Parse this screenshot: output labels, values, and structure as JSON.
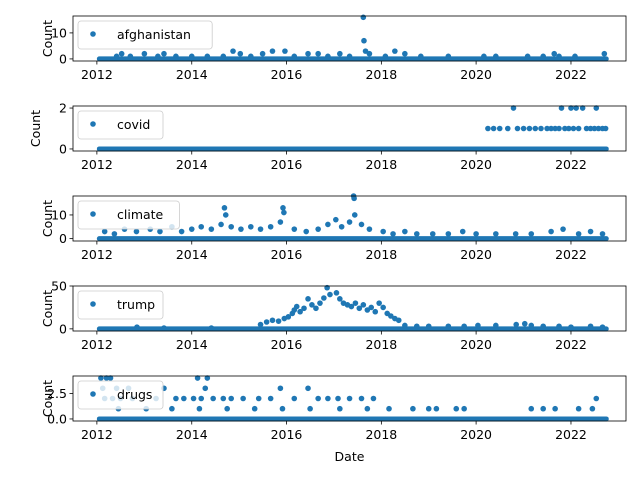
{
  "chart_data": [
    {
      "type": "scatter",
      "legend": "afghanistan",
      "legend_position": "upper-left",
      "ylabel": "Count",
      "xlim": [
        "2011-07-01",
        "2023-03-01"
      ],
      "ylim": [
        -0.8,
        16.5
      ],
      "yticks": [
        0,
        10
      ],
      "ytick_labels": [
        "0",
        "10"
      ],
      "color": "#1f77b4",
      "baseline_value": 0,
      "baseline_range": [
        "2012-01-20",
        "2022-09-30"
      ],
      "points": [
        {
          "x": "2012-06-01",
          "y": 1
        },
        {
          "x": "2012-07-10",
          "y": 2
        },
        {
          "x": "2012-09-15",
          "y": 1
        },
        {
          "x": "2013-01-01",
          "y": 2
        },
        {
          "x": "2013-04-15",
          "y": 1
        },
        {
          "x": "2013-06-01",
          "y": 2
        },
        {
          "x": "2013-09-01",
          "y": 1
        },
        {
          "x": "2014-01-01",
          "y": 1
        },
        {
          "x": "2014-05-01",
          "y": 1
        },
        {
          "x": "2014-09-01",
          "y": 1
        },
        {
          "x": "2014-11-15",
          "y": 3
        },
        {
          "x": "2015-01-10",
          "y": 2
        },
        {
          "x": "2015-04-01",
          "y": 1
        },
        {
          "x": "2015-07-01",
          "y": 2
        },
        {
          "x": "2015-09-15",
          "y": 3
        },
        {
          "x": "2015-12-20",
          "y": 3
        },
        {
          "x": "2016-03-01",
          "y": 1
        },
        {
          "x": "2016-06-15",
          "y": 2
        },
        {
          "x": "2016-09-01",
          "y": 2
        },
        {
          "x": "2016-11-15",
          "y": 1
        },
        {
          "x": "2017-02-15",
          "y": 2
        },
        {
          "x": "2017-05-01",
          "y": 1
        },
        {
          "x": "2017-08-15",
          "y": 16
        },
        {
          "x": "2017-08-20",
          "y": 7
        },
        {
          "x": "2017-09-01",
          "y": 3
        },
        {
          "x": "2017-10-01",
          "y": 2
        },
        {
          "x": "2018-02-01",
          "y": 1
        },
        {
          "x": "2018-04-15",
          "y": 3
        },
        {
          "x": "2018-07-01",
          "y": 2
        },
        {
          "x": "2018-11-01",
          "y": 1
        },
        {
          "x": "2019-06-01",
          "y": 1
        },
        {
          "x": "2020-03-01",
          "y": 1
        },
        {
          "x": "2020-06-01",
          "y": 1
        },
        {
          "x": "2021-02-01",
          "y": 1
        },
        {
          "x": "2021-06-01",
          "y": 1
        },
        {
          "x": "2021-08-25",
          "y": 2
        },
        {
          "x": "2021-10-01",
          "y": 1
        },
        {
          "x": "2022-02-01",
          "y": 1
        },
        {
          "x": "2022-09-15",
          "y": 2
        }
      ]
    },
    {
      "type": "scatter",
      "legend": "covid",
      "legend_position": "upper-left",
      "ylabel": "Count",
      "xlim": [
        "2011-07-01",
        "2023-03-01"
      ],
      "ylim": [
        -0.1,
        2.1
      ],
      "yticks": [
        0,
        2
      ],
      "ytick_labels": [
        "0",
        "2"
      ],
      "color": "#1f77b4",
      "baseline_value": 0,
      "baseline_range": [
        "2012-01-20",
        "2022-09-30"
      ],
      "points": [
        {
          "x": "2020-04-01",
          "y": 1
        },
        {
          "x": "2020-05-15",
          "y": 1
        },
        {
          "x": "2020-07-01",
          "y": 1
        },
        {
          "x": "2020-09-01",
          "y": 1
        },
        {
          "x": "2020-10-15",
          "y": 2
        },
        {
          "x": "2020-11-15",
          "y": 1
        },
        {
          "x": "2021-01-01",
          "y": 1
        },
        {
          "x": "2021-02-15",
          "y": 1
        },
        {
          "x": "2021-04-01",
          "y": 1
        },
        {
          "x": "2021-05-15",
          "y": 1
        },
        {
          "x": "2021-07-01",
          "y": 1
        },
        {
          "x": "2021-08-01",
          "y": 1
        },
        {
          "x": "2021-09-01",
          "y": 1
        },
        {
          "x": "2021-10-01",
          "y": 1
        },
        {
          "x": "2021-10-20",
          "y": 2
        },
        {
          "x": "2021-11-15",
          "y": 1
        },
        {
          "x": "2021-12-15",
          "y": 1
        },
        {
          "x": "2022-01-01",
          "y": 2
        },
        {
          "x": "2022-01-20",
          "y": 1
        },
        {
          "x": "2022-02-10",
          "y": 2
        },
        {
          "x": "2022-03-01",
          "y": 1
        },
        {
          "x": "2022-04-01",
          "y": 2
        },
        {
          "x": "2022-05-01",
          "y": 1
        },
        {
          "x": "2022-06-01",
          "y": 1
        },
        {
          "x": "2022-07-01",
          "y": 1
        },
        {
          "x": "2022-07-15",
          "y": 2
        },
        {
          "x": "2022-08-01",
          "y": 1
        },
        {
          "x": "2022-09-01",
          "y": 1
        },
        {
          "x": "2022-09-25",
          "y": 1
        }
      ]
    },
    {
      "type": "scatter",
      "legend": "climate",
      "legend_position": "upper-left",
      "ylabel": "Count",
      "xlim": [
        "2011-07-01",
        "2023-03-01"
      ],
      "ylim": [
        -1.0,
        18.0
      ],
      "yticks": [
        0,
        10
      ],
      "ytick_labels": [
        "0",
        "10"
      ],
      "color": "#1f77b4",
      "baseline_value": 0,
      "baseline_range": [
        "2012-01-20",
        "2022-09-30"
      ],
      "points": [
        {
          "x": "2012-03-01",
          "y": 3
        },
        {
          "x": "2012-05-15",
          "y": 2
        },
        {
          "x": "2012-08-01",
          "y": 4
        },
        {
          "x": "2012-11-01",
          "y": 3
        },
        {
          "x": "2013-02-15",
          "y": 4
        },
        {
          "x": "2013-05-01",
          "y": 3
        },
        {
          "x": "2013-08-01",
          "y": 5
        },
        {
          "x": "2013-10-15",
          "y": 3
        },
        {
          "x": "2014-01-01",
          "y": 4
        },
        {
          "x": "2014-03-15",
          "y": 5
        },
        {
          "x": "2014-06-01",
          "y": 4
        },
        {
          "x": "2014-08-15",
          "y": 6
        },
        {
          "x": "2014-09-10",
          "y": 13
        },
        {
          "x": "2014-09-20",
          "y": 10
        },
        {
          "x": "2014-11-01",
          "y": 5
        },
        {
          "x": "2015-01-15",
          "y": 4
        },
        {
          "x": "2015-04-01",
          "y": 5
        },
        {
          "x": "2015-06-15",
          "y": 4
        },
        {
          "x": "2015-09-01",
          "y": 5
        },
        {
          "x": "2015-11-15",
          "y": 7
        },
        {
          "x": "2015-12-05",
          "y": 13
        },
        {
          "x": "2015-12-12",
          "y": 11
        },
        {
          "x": "2016-03-01",
          "y": 4
        },
        {
          "x": "2016-06-01",
          "y": 3
        },
        {
          "x": "2016-09-01",
          "y": 4
        },
        {
          "x": "2016-11-15",
          "y": 6
        },
        {
          "x": "2017-01-15",
          "y": 8
        },
        {
          "x": "2017-03-01",
          "y": 5
        },
        {
          "x": "2017-05-01",
          "y": 7
        },
        {
          "x": "2017-06-01",
          "y": 18
        },
        {
          "x": "2017-06-05",
          "y": 17
        },
        {
          "x": "2017-06-10",
          "y": 10
        },
        {
          "x": "2017-08-01",
          "y": 6
        },
        {
          "x": "2017-10-01",
          "y": 4
        },
        {
          "x": "2018-01-15",
          "y": 3
        },
        {
          "x": "2018-04-01",
          "y": 2
        },
        {
          "x": "2018-07-01",
          "y": 3
        },
        {
          "x": "2018-10-01",
          "y": 2
        },
        {
          "x": "2019-02-01",
          "y": 2
        },
        {
          "x": "2019-06-01",
          "y": 2
        },
        {
          "x": "2019-09-20",
          "y": 3
        },
        {
          "x": "2020-01-01",
          "y": 2
        },
        {
          "x": "2020-06-01",
          "y": 2
        },
        {
          "x": "2020-11-01",
          "y": 2
        },
        {
          "x": "2021-03-01",
          "y": 2
        },
        {
          "x": "2021-08-01",
          "y": 3
        },
        {
          "x": "2021-11-01",
          "y": 4
        },
        {
          "x": "2022-03-01",
          "y": 2
        },
        {
          "x": "2022-06-01",
          "y": 3
        },
        {
          "x": "2022-09-01",
          "y": 2
        }
      ]
    },
    {
      "type": "scatter",
      "legend": "trump",
      "legend_position": "upper-left",
      "ylabel": "Count",
      "xlim": [
        "2011-07-01",
        "2023-03-01"
      ],
      "ylim": [
        -2.5,
        50.0
      ],
      "yticks": [
        0,
        50
      ],
      "ytick_labels": [
        "0",
        "50"
      ],
      "color": "#1f77b4",
      "baseline_value": 0,
      "baseline_range": [
        "2012-01-20",
        "2022-09-30"
      ],
      "points": [
        {
          "x": "2012-11-05",
          "y": 2
        },
        {
          "x": "2013-06-01",
          "y": 1
        },
        {
          "x": "2014-06-01",
          "y": 1
        },
        {
          "x": "2015-06-15",
          "y": 5
        },
        {
          "x": "2015-08-01",
          "y": 8
        },
        {
          "x": "2015-09-15",
          "y": 10
        },
        {
          "x": "2015-11-01",
          "y": 9
        },
        {
          "x": "2015-12-15",
          "y": 12
        },
        {
          "x": "2016-01-15",
          "y": 14
        },
        {
          "x": "2016-02-15",
          "y": 18
        },
        {
          "x": "2016-03-01",
          "y": 22
        },
        {
          "x": "2016-03-20",
          "y": 26
        },
        {
          "x": "2016-04-15",
          "y": 20
        },
        {
          "x": "2016-05-15",
          "y": 24
        },
        {
          "x": "2016-06-15",
          "y": 35
        },
        {
          "x": "2016-07-15",
          "y": 28
        },
        {
          "x": "2016-08-15",
          "y": 24
        },
        {
          "x": "2016-09-15",
          "y": 30
        },
        {
          "x": "2016-10-15",
          "y": 36
        },
        {
          "x": "2016-11-09",
          "y": 48
        },
        {
          "x": "2016-12-01",
          "y": 40
        },
        {
          "x": "2017-01-20",
          "y": 42
        },
        {
          "x": "2017-02-15",
          "y": 35
        },
        {
          "x": "2017-03-15",
          "y": 30
        },
        {
          "x": "2017-04-15",
          "y": 28
        },
        {
          "x": "2017-05-15",
          "y": 26
        },
        {
          "x": "2017-06-15",
          "y": 30
        },
        {
          "x": "2017-07-15",
          "y": 24
        },
        {
          "x": "2017-08-15",
          "y": 28
        },
        {
          "x": "2017-09-15",
          "y": 22
        },
        {
          "x": "2017-10-15",
          "y": 25
        },
        {
          "x": "2017-11-15",
          "y": 20
        },
        {
          "x": "2017-12-15",
          "y": 30
        },
        {
          "x": "2018-01-15",
          "y": 25
        },
        {
          "x": "2018-02-15",
          "y": 18
        },
        {
          "x": "2018-03-15",
          "y": 15
        },
        {
          "x": "2018-04-15",
          "y": 12
        },
        {
          "x": "2018-05-15",
          "y": 10
        },
        {
          "x": "2018-07-01",
          "y": 4
        },
        {
          "x": "2018-10-01",
          "y": 3
        },
        {
          "x": "2019-01-01",
          "y": 3
        },
        {
          "x": "2019-06-01",
          "y": 3
        },
        {
          "x": "2019-10-01",
          "y": 3
        },
        {
          "x": "2020-01-15",
          "y": 4
        },
        {
          "x": "2020-06-01",
          "y": 4
        },
        {
          "x": "2020-11-05",
          "y": 5
        },
        {
          "x": "2021-01-10",
          "y": 6
        },
        {
          "x": "2021-03-01",
          "y": 4
        },
        {
          "x": "2021-06-01",
          "y": 3
        },
        {
          "x": "2021-10-01",
          "y": 3
        },
        {
          "x": "2022-01-01",
          "y": 2
        },
        {
          "x": "2022-06-01",
          "y": 3
        },
        {
          "x": "2022-09-01",
          "y": 2
        }
      ]
    },
    {
      "type": "scatter",
      "legend": "drugs",
      "legend_position": "upper-left",
      "ylabel": "Count",
      "xlabel": "Date",
      "xlim": [
        "2011-07-01",
        "2023-03-01"
      ],
      "ylim": [
        -0.2,
        4.2
      ],
      "yticks": [
        0,
        2.5
      ],
      "ytick_labels": [
        "0.0",
        "2.5"
      ],
      "xticks": [
        "2012-01-01",
        "2014-01-01",
        "2016-01-01",
        "2018-01-01",
        "2020-01-01",
        "2022-01-01"
      ],
      "xtick_labels": [
        "2012",
        "2014",
        "2016",
        "2018",
        "2020",
        "2022"
      ],
      "color": "#1f77b4",
      "baseline_value": 0,
      "baseline_range": [
        "2012-01-20",
        "2022-09-30"
      ],
      "points": [
        {
          "x": "2012-02-01",
          "y": 4
        },
        {
          "x": "2012-03-15",
          "y": 4
        },
        {
          "x": "2012-04-15",
          "y": 4
        },
        {
          "x": "2012-02-15",
          "y": 3
        },
        {
          "x": "2012-06-01",
          "y": 3
        },
        {
          "x": "2012-09-01",
          "y": 3
        },
        {
          "x": "2012-03-01",
          "y": 2
        },
        {
          "x": "2012-05-01",
          "y": 2
        },
        {
          "x": "2012-07-01",
          "y": 2
        },
        {
          "x": "2012-10-01",
          "y": 2
        },
        {
          "x": "2013-04-01",
          "y": 2
        },
        {
          "x": "2013-06-01",
          "y": 3
        },
        {
          "x": "2013-09-01",
          "y": 2
        },
        {
          "x": "2013-11-01",
          "y": 2
        },
        {
          "x": "2014-01-15",
          "y": 2
        },
        {
          "x": "2014-02-15",
          "y": 4
        },
        {
          "x": "2014-03-15",
          "y": 2
        },
        {
          "x": "2014-04-15",
          "y": 3
        },
        {
          "x": "2014-05-01",
          "y": 4
        },
        {
          "x": "2014-06-15",
          "y": 2
        },
        {
          "x": "2014-09-01",
          "y": 2
        },
        {
          "x": "2014-11-01",
          "y": 2
        },
        {
          "x": "2015-02-01",
          "y": 2
        },
        {
          "x": "2015-06-01",
          "y": 2
        },
        {
          "x": "2015-09-01",
          "y": 2
        },
        {
          "x": "2015-11-15",
          "y": 3
        },
        {
          "x": "2016-03-01",
          "y": 2
        },
        {
          "x": "2016-06-15",
          "y": 3
        },
        {
          "x": "2016-09-01",
          "y": 2
        },
        {
          "x": "2016-11-15",
          "y": 2
        },
        {
          "x": "2017-02-01",
          "y": 2
        },
        {
          "x": "2017-05-01",
          "y": 2
        },
        {
          "x": "2017-08-01",
          "y": 2
        },
        {
          "x": "2017-11-01",
          "y": 2
        },
        {
          "x": "2012-06-15",
          "y": 1
        },
        {
          "x": "2013-01-15",
          "y": 1
        },
        {
          "x": "2013-08-01",
          "y": 1
        },
        {
          "x": "2014-03-01",
          "y": 1
        },
        {
          "x": "2014-10-01",
          "y": 1
        },
        {
          "x": "2015-05-01",
          "y": 1
        },
        {
          "x": "2015-12-01",
          "y": 1
        },
        {
          "x": "2016-07-01",
          "y": 1
        },
        {
          "x": "2017-02-15",
          "y": 1
        },
        {
          "x": "2017-09-15",
          "y": 1
        },
        {
          "x": "2018-03-01",
          "y": 1
        },
        {
          "x": "2018-09-01",
          "y": 1
        },
        {
          "x": "2019-01-01",
          "y": 1
        },
        {
          "x": "2019-03-01",
          "y": 1
        },
        {
          "x": "2019-08-01",
          "y": 1
        },
        {
          "x": "2019-10-01",
          "y": 1
        },
        {
          "x": "2021-03-01",
          "y": 1
        },
        {
          "x": "2021-06-01",
          "y": 1
        },
        {
          "x": "2021-09-01",
          "y": 1
        },
        {
          "x": "2022-03-01",
          "y": 1
        },
        {
          "x": "2022-06-15",
          "y": 1
        },
        {
          "x": "2022-07-15",
          "y": 2
        }
      ]
    }
  ]
}
